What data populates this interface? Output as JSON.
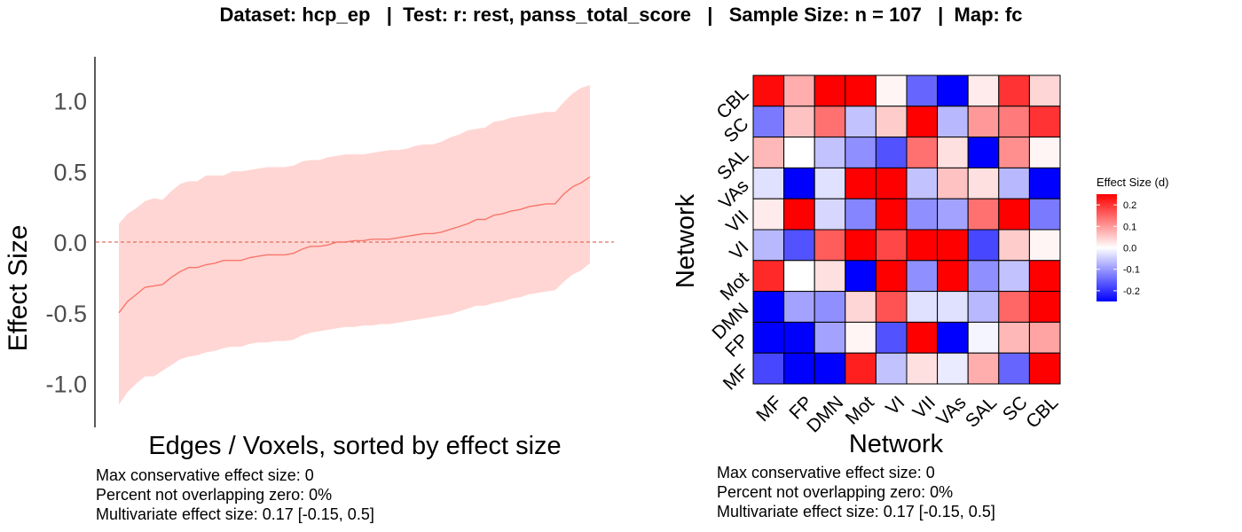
{
  "title": "Dataset: hcp_ep   |  Test: r: rest, panss_total_score   |   Sample Size: n = 107   |  Map: fc",
  "charts": {
    "left": {
      "ylabel": "Effect Size",
      "xlabel": "Edges / Voxels, sorted by effect size",
      "stats": [
        "Max conservative effect size: 0",
        "Percent not overlapping zero: 0%",
        "Multivariate effect size: 0.17 [-0.15, 0.5]"
      ]
    },
    "right": {
      "xlabel": "Network",
      "ylabel": "Network",
      "legend_title": "Effect Size (d)",
      "stats": [
        "Max conservative effect size: 0",
        "Percent not overlapping zero: 0%",
        "Multivariate effect size: 0.17 [-0.15, 0.5]"
      ]
    }
  },
  "chart_data": [
    {
      "type": "line",
      "xlabel": "Edges / Voxels, sorted by effect size",
      "ylabel": "Effect Size",
      "ylim": [
        -1.3,
        1.3
      ],
      "yticks": [
        1.0,
        0.5,
        0.0,
        -0.5,
        -1.0
      ],
      "ytick_labels": [
        "1.0",
        "0.5",
        "0.0",
        "-0.5",
        "-1.0"
      ],
      "x": [
        1,
        2,
        3,
        4,
        5,
        6,
        7,
        8,
        9,
        10,
        11,
        12,
        13,
        14,
        15,
        16,
        17,
        18,
        19,
        20,
        21,
        22,
        23,
        24,
        25,
        26,
        27,
        28,
        29,
        30,
        31,
        32,
        33,
        34,
        35,
        36,
        37,
        38,
        39,
        40,
        41,
        42,
        43,
        44,
        45,
        46,
        47,
        48,
        49,
        50,
        51,
        52,
        53,
        54,
        55
      ],
      "series": [
        {
          "name": "estimate",
          "color": "#f8766d",
          "values": [
            -0.5,
            -0.42,
            -0.37,
            -0.32,
            -0.31,
            -0.3,
            -0.25,
            -0.21,
            -0.18,
            -0.18,
            -0.16,
            -0.15,
            -0.13,
            -0.13,
            -0.13,
            -0.11,
            -0.1,
            -0.09,
            -0.09,
            -0.09,
            -0.08,
            -0.05,
            -0.03,
            -0.03,
            -0.02,
            0.0,
            0.0,
            0.01,
            0.01,
            0.02,
            0.02,
            0.02,
            0.03,
            0.04,
            0.05,
            0.06,
            0.06,
            0.07,
            0.09,
            0.11,
            0.13,
            0.16,
            0.16,
            0.19,
            0.2,
            0.22,
            0.23,
            0.25,
            0.26,
            0.27,
            0.27,
            0.34,
            0.39,
            0.42,
            0.46
          ]
        },
        {
          "name": "upper",
          "color": "#ffd6d3",
          "values": [
            0.13,
            0.2,
            0.24,
            0.29,
            0.31,
            0.3,
            0.36,
            0.41,
            0.43,
            0.43,
            0.47,
            0.47,
            0.47,
            0.5,
            0.5,
            0.51,
            0.52,
            0.53,
            0.53,
            0.53,
            0.54,
            0.57,
            0.58,
            0.58,
            0.6,
            0.61,
            0.62,
            0.62,
            0.62,
            0.63,
            0.64,
            0.65,
            0.65,
            0.66,
            0.68,
            0.69,
            0.69,
            0.71,
            0.74,
            0.76,
            0.79,
            0.8,
            0.81,
            0.85,
            0.86,
            0.88,
            0.89,
            0.9,
            0.91,
            0.92,
            0.92,
            0.99,
            1.05,
            1.09,
            1.11
          ]
        },
        {
          "name": "lower",
          "color": "#ffd6d3",
          "values": [
            -1.15,
            -1.06,
            -1.0,
            -0.95,
            -0.95,
            -0.91,
            -0.87,
            -0.83,
            -0.81,
            -0.8,
            -0.78,
            -0.77,
            -0.75,
            -0.74,
            -0.74,
            -0.72,
            -0.71,
            -0.71,
            -0.7,
            -0.7,
            -0.69,
            -0.66,
            -0.64,
            -0.63,
            -0.62,
            -0.61,
            -0.6,
            -0.6,
            -0.59,
            -0.59,
            -0.58,
            -0.58,
            -0.57,
            -0.56,
            -0.55,
            -0.54,
            -0.53,
            -0.52,
            -0.51,
            -0.49,
            -0.47,
            -0.45,
            -0.45,
            -0.43,
            -0.42,
            -0.4,
            -0.39,
            -0.37,
            -0.36,
            -0.35,
            -0.34,
            -0.28,
            -0.23,
            -0.2,
            -0.15
          ]
        }
      ],
      "reference_line": {
        "y": 0,
        "style": "dashed",
        "color": "#e07060"
      }
    },
    {
      "type": "heatmap",
      "x_categories": [
        "MF",
        "FP",
        "DMN",
        "Mot",
        "VI",
        "VII",
        "VAs",
        "SAL",
        "SC",
        "CBL"
      ],
      "y_categories": [
        "MF",
        "FP",
        "DMN",
        "Mot",
        "VI",
        "VII",
        "VAs",
        "SAL",
        "SC",
        "CBL"
      ],
      "xlabel": "Network",
      "ylabel": "Network",
      "legend_title": "Effect Size (d)",
      "color_scale": {
        "low": "#0000ff",
        "mid": "#ffffff",
        "high": "#ff0000",
        "limits": [
          -0.25,
          0.25
        ]
      },
      "legend_ticks": [
        0.2,
        0.1,
        0.0,
        -0.1,
        -0.2
      ],
      "legend_tick_labels": [
        "0.2",
        "0.1",
        "0.0",
        "-0.1",
        "-0.2"
      ],
      "values_by_row_top_to_bottom": [
        [
          0.24,
          0.08,
          0.25,
          0.25,
          0.01,
          -0.15,
          -0.25,
          0.02,
          0.2,
          0.04
        ],
        [
          -0.13,
          0.06,
          0.14,
          -0.06,
          0.05,
          0.25,
          -0.07,
          0.1,
          0.13,
          0.2
        ],
        [
          0.07,
          0.0,
          -0.06,
          -0.11,
          -0.17,
          0.14,
          0.03,
          -0.25,
          0.11,
          0.01
        ],
        [
          -0.03,
          -0.25,
          -0.03,
          0.25,
          0.25,
          -0.06,
          0.06,
          0.03,
          -0.07,
          -0.25
        ],
        [
          0.02,
          0.25,
          -0.04,
          -0.12,
          0.25,
          -0.11,
          -0.09,
          0.14,
          0.25,
          -0.13
        ],
        [
          -0.07,
          -0.17,
          0.16,
          0.25,
          0.18,
          0.25,
          0.25,
          -0.18,
          0.05,
          0.01
        ],
        [
          0.21,
          0.0,
          0.03,
          -0.25,
          0.25,
          -0.11,
          0.25,
          -0.11,
          -0.06,
          0.25
        ],
        [
          -0.25,
          -0.09,
          -0.11,
          0.04,
          0.17,
          -0.03,
          -0.03,
          -0.07,
          0.15,
          0.25
        ],
        [
          -0.25,
          -0.25,
          -0.09,
          0.01,
          -0.17,
          0.25,
          -0.25,
          -0.01,
          0.07,
          0.09
        ],
        [
          -0.18,
          -0.25,
          -0.25,
          0.22,
          -0.06,
          0.03,
          -0.02,
          0.08,
          -0.15,
          0.25
        ]
      ]
    }
  ]
}
